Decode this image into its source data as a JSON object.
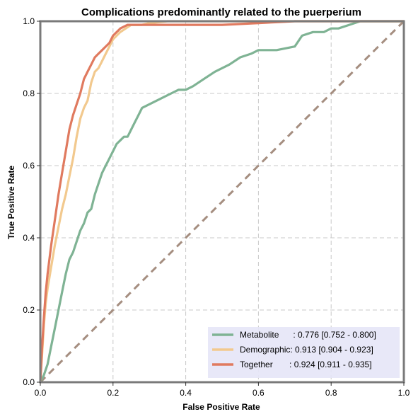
{
  "chart_data": {
    "type": "line",
    "title": "Complications predominantly related to the puerperium",
    "xlabel": "False Positive Rate",
    "ylabel": "True Positive Rate",
    "xlim": [
      0,
      1
    ],
    "ylim": [
      0,
      1
    ],
    "grid": true,
    "legend_position": "bottom-right",
    "x_ticks": [
      "0.0",
      "0.2",
      "0.4",
      "0.6",
      "0.8",
      "1.0"
    ],
    "y_ticks": [
      "0.0",
      "0.2",
      "0.4",
      "0.6",
      "0.8",
      "1.0"
    ],
    "colors": {
      "metabolite": "#7fb394",
      "demographic": "#f2c98e",
      "together": "#e07a5f",
      "diagonal": "#a58e80",
      "legend_bg": "#e6e6f7",
      "grid": "#c8c8c8",
      "frame": "#7a7a7a"
    },
    "series": [
      {
        "name": "Metabolite",
        "legend_label": "Metabolite      : 0.776 [0.752 - 0.800]",
        "x": [
          0,
          0.01,
          0.02,
          0.03,
          0.04,
          0.05,
          0.06,
          0.07,
          0.08,
          0.09,
          0.1,
          0.11,
          0.12,
          0.13,
          0.14,
          0.15,
          0.16,
          0.17,
          0.18,
          0.19,
          0.2,
          0.21,
          0.22,
          0.23,
          0.24,
          0.25,
          0.26,
          0.27,
          0.28,
          0.3,
          0.32,
          0.34,
          0.36,
          0.38,
          0.4,
          0.42,
          0.45,
          0.48,
          0.5,
          0.52,
          0.55,
          0.58,
          0.6,
          0.62,
          0.65,
          0.7,
          0.72,
          0.75,
          0.78,
          0.8,
          0.82,
          0.85,
          0.88,
          0.9,
          0.95,
          1.0
        ],
        "y": [
          0,
          0.02,
          0.05,
          0.1,
          0.15,
          0.2,
          0.25,
          0.3,
          0.34,
          0.36,
          0.39,
          0.42,
          0.44,
          0.47,
          0.48,
          0.52,
          0.55,
          0.58,
          0.6,
          0.62,
          0.64,
          0.66,
          0.67,
          0.68,
          0.68,
          0.7,
          0.72,
          0.74,
          0.76,
          0.77,
          0.78,
          0.79,
          0.8,
          0.81,
          0.81,
          0.82,
          0.84,
          0.86,
          0.87,
          0.88,
          0.9,
          0.91,
          0.92,
          0.92,
          0.92,
          0.93,
          0.96,
          0.97,
          0.97,
          0.98,
          0.98,
          0.99,
          1.0,
          1.0,
          1.0,
          1.0
        ]
      },
      {
        "name": "Demographic",
        "legend_label": "Demographic: 0.913 [0.904 - 0.923]",
        "x": [
          0,
          0.005,
          0.01,
          0.015,
          0.02,
          0.03,
          0.04,
          0.05,
          0.06,
          0.07,
          0.08,
          0.09,
          0.1,
          0.11,
          0.12,
          0.13,
          0.14,
          0.15,
          0.16,
          0.17,
          0.18,
          0.19,
          0.2,
          0.22,
          0.25,
          0.28,
          0.3,
          0.35,
          0.4,
          0.5,
          0.6,
          0.7,
          0.8,
          0.9,
          1.0
        ],
        "y": [
          0,
          0.08,
          0.16,
          0.22,
          0.26,
          0.32,
          0.38,
          0.43,
          0.48,
          0.52,
          0.57,
          0.62,
          0.68,
          0.73,
          0.76,
          0.78,
          0.83,
          0.86,
          0.87,
          0.89,
          0.91,
          0.93,
          0.95,
          0.97,
          0.99,
          0.99,
          0.995,
          1.0,
          1.0,
          1.0,
          1.0,
          1.0,
          1.0,
          1.0,
          1.0
        ]
      },
      {
        "name": "Together",
        "legend_label": "Together       : 0.924 [0.911 - 0.935]",
        "x": [
          0,
          0.005,
          0.01,
          0.015,
          0.02,
          0.03,
          0.04,
          0.05,
          0.06,
          0.07,
          0.08,
          0.09,
          0.1,
          0.11,
          0.12,
          0.13,
          0.14,
          0.15,
          0.16,
          0.17,
          0.18,
          0.19,
          0.2,
          0.22,
          0.24,
          0.26,
          0.3,
          0.35,
          0.4,
          0.5,
          0.6,
          0.7,
          0.8,
          0.9,
          1.0
        ],
        "y": [
          0,
          0.1,
          0.18,
          0.25,
          0.3,
          0.38,
          0.45,
          0.52,
          0.58,
          0.64,
          0.7,
          0.74,
          0.77,
          0.8,
          0.84,
          0.86,
          0.88,
          0.9,
          0.91,
          0.92,
          0.93,
          0.94,
          0.96,
          0.98,
          0.99,
          0.99,
          0.99,
          0.99,
          0.99,
          0.99,
          0.995,
          1.0,
          1.0,
          1.0,
          1.0
        ]
      }
    ]
  }
}
